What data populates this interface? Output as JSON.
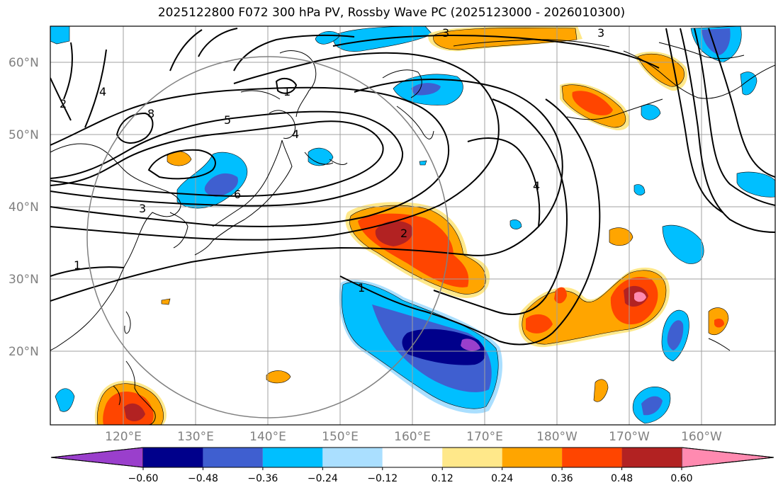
{
  "title": "2025122800 F072 300 hPa PV, Rossby Wave PC (2025123000 - 2026010300)",
  "map": {
    "lat_labels": [
      "60°N",
      "50°N",
      "40°N",
      "30°N",
      "20°N"
    ],
    "lon_labels": [
      "120°E",
      "130°E",
      "140°E",
      "150°E",
      "160°E",
      "170°E",
      "180°W",
      "170°W",
      "160°W"
    ],
    "contour_labels": [
      "1",
      "1",
      "1",
      "2",
      "2",
      "3",
      "3",
      "3",
      "4",
      "4",
      "4",
      "5",
      "6",
      "8"
    ]
  },
  "colorbar": {
    "colors": [
      "#9a3fcc",
      "#00008b",
      "#3f5fd0",
      "#00bfff",
      "#aadfff",
      "#ffffff",
      "#ffe88a",
      "#ffa500",
      "#ff4500",
      "#b22222",
      "#ff8ab0"
    ],
    "tick_labels": [
      "−0.60",
      "−0.48",
      "−0.36",
      "−0.24",
      "−0.12",
      "0.12",
      "0.24",
      "0.36",
      "0.48",
      "0.60"
    ]
  }
}
